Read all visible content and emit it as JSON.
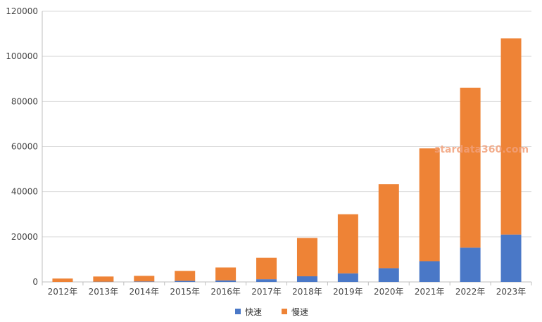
{
  "watermark": "stardata360.com",
  "colors": {
    "fast": "#4a78c7",
    "slow": "#ee8336",
    "grid": "#d9d9d9",
    "axis": "#bfbfbf"
  },
  "chart_data": {
    "type": "bar",
    "stacked": true,
    "categories": [
      "2012年",
      "2013年",
      "2014年",
      "2015年",
      "2016年",
      "2017年",
      "2018年",
      "2019年",
      "2020年",
      "2021年",
      "2022年",
      "2023年"
    ],
    "series": [
      {
        "name": "快速",
        "values": [
          0,
          100,
          200,
          500,
          700,
          1200,
          2500,
          3800,
          6100,
          9200,
          15200,
          21000
        ]
      },
      {
        "name": "慢速",
        "values": [
          1500,
          2300,
          2500,
          4400,
          5700,
          9500,
          17000,
          26200,
          37200,
          50000,
          70900,
          87000
        ]
      }
    ],
    "ylim": [
      0,
      120000
    ],
    "yticks": [
      "0",
      "20000",
      "40000",
      "60000",
      "80000",
      "100000",
      "120000"
    ],
    "ytick_values": [
      0,
      20000,
      40000,
      60000,
      80000,
      100000,
      120000
    ],
    "grid": true,
    "legend_position": "bottom",
    "title": "",
    "xlabel": "",
    "ylabel": ""
  }
}
